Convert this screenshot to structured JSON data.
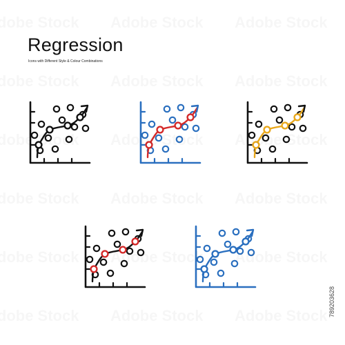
{
  "title": "Regression",
  "subtitle": "Icons with Different Style & Colour Combinations",
  "stock_id": "789203628",
  "watermark": "Adobe Stock",
  "icons": [
    {
      "name": "regression-icon-black",
      "axis": "#111111",
      "line": "#111111",
      "node": "#111111",
      "dot": "#111111"
    },
    {
      "name": "regression-icon-blue-red",
      "axis": "#2a6fbf",
      "line": "#d42a2a",
      "node": "#d42a2a",
      "dot": "#2a6fbf"
    },
    {
      "name": "regression-icon-black-yellow",
      "axis": "#111111",
      "line": "#e9a81c",
      "node": "#e9a81c",
      "dot": "#111111"
    },
    {
      "name": "regression-icon-black-red",
      "axis": "#111111",
      "line": "#111111",
      "node": "#d42a2a",
      "dot": "#111111"
    },
    {
      "name": "regression-icon-blue",
      "axis": "#2a6fbf",
      "line": "#2a6fbf",
      "node": "#2a6fbf",
      "dot": "#2a6fbf"
    }
  ]
}
